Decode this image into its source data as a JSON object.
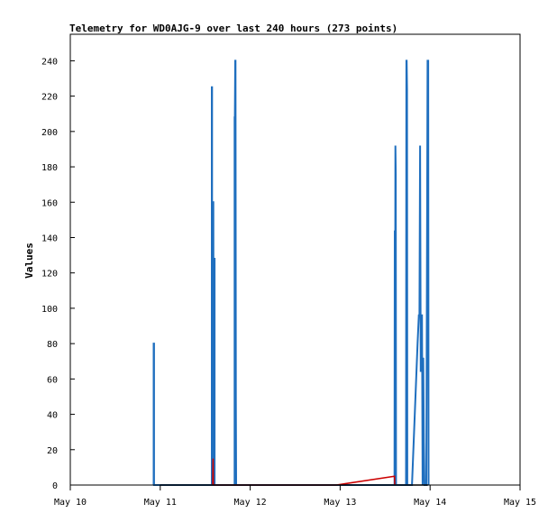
{
  "chart_data": {
    "type": "line",
    "title": "Telemetry for WD0AJG-9 over last 240 hours (273 points)",
    "ylabel": "Values",
    "xlabel": "",
    "x_axis_type": "date",
    "xlim": [
      "2025-05-10",
      "2025-05-15"
    ],
    "x_ticks": [
      {
        "value": "2025-05-10",
        "label": "May 10"
      },
      {
        "value": "2025-05-11",
        "label": "May 11"
      },
      {
        "value": "2025-05-12",
        "label": "May 12"
      },
      {
        "value": "2025-05-13",
        "label": "May 13"
      },
      {
        "value": "2025-05-14",
        "label": "May 14"
      },
      {
        "value": "2025-05-15",
        "label": "May 15"
      }
    ],
    "ylim": [
      0,
      255
    ],
    "y_ticks": [
      0,
      20,
      40,
      60,
      80,
      100,
      120,
      140,
      160,
      180,
      200,
      220,
      240
    ],
    "grid": false,
    "colors": {
      "series_blue": "#1f6fbf",
      "series_red": "#cc0000",
      "series_black": "#000000",
      "axis": "#000000"
    },
    "series": [
      {
        "color": "#1f6fbf",
        "points": [
          [
            "2025-05-10T22:15",
            0
          ],
          [
            "2025-05-10T22:15",
            80
          ],
          [
            "2025-05-10T22:20",
            80
          ],
          [
            "2025-05-10T22:20",
            0
          ],
          [
            "2025-05-11T13:45",
            0
          ],
          [
            "2025-05-11T13:45",
            225
          ],
          [
            "2025-05-11T13:50",
            225
          ],
          [
            "2025-05-11T13:50",
            0
          ],
          [
            "2025-05-11T14:00",
            32
          ],
          [
            "2025-05-11T14:05",
            160
          ],
          [
            "2025-05-11T14:10",
            160
          ],
          [
            "2025-05-11T14:15",
            0
          ],
          [
            "2025-05-11T14:25",
            0
          ],
          [
            "2025-05-11T14:25",
            128
          ],
          [
            "2025-05-11T14:30",
            128
          ],
          [
            "2025-05-11T14:30",
            0
          ],
          [
            "2025-05-11T19:50",
            0
          ],
          [
            "2025-05-11T19:50",
            208
          ],
          [
            "2025-05-11T19:55",
            208
          ],
          [
            "2025-05-11T20:00",
            240
          ],
          [
            "2025-05-11T20:05",
            240
          ],
          [
            "2025-05-11T20:10",
            48
          ],
          [
            "2025-05-11T20:15",
            0
          ],
          [
            "2025-05-13T14:30",
            0
          ],
          [
            "2025-05-13T14:35",
            144
          ],
          [
            "2025-05-13T14:40",
            80
          ],
          [
            "2025-05-13T14:45",
            192
          ],
          [
            "2025-05-13T14:50",
            176
          ],
          [
            "2025-05-13T14:55",
            0
          ],
          [
            "2025-05-13T17:35",
            0
          ],
          [
            "2025-05-13T17:40",
            240
          ],
          [
            "2025-05-13T17:45",
            240
          ],
          [
            "2025-05-13T17:50",
            224
          ],
          [
            "2025-05-13T17:55",
            0
          ],
          [
            "2025-05-13T19:10",
            0
          ],
          [
            "2025-05-13T20:40",
            80
          ],
          [
            "2025-05-13T21:00",
            96
          ],
          [
            "2025-05-13T21:10",
            96
          ],
          [
            "2025-05-13T21:20",
            192
          ],
          [
            "2025-05-13T21:30",
            64
          ],
          [
            "2025-05-13T21:40",
            96
          ],
          [
            "2025-05-13T21:50",
            96
          ],
          [
            "2025-05-13T22:00",
            0
          ],
          [
            "2025-05-13T22:10",
            72
          ],
          [
            "2025-05-13T22:20",
            24
          ],
          [
            "2025-05-13T22:30",
            0
          ],
          [
            "2025-05-13T23:00",
            0
          ],
          [
            "2025-05-13T23:10",
            120
          ],
          [
            "2025-05-13T23:20",
            240
          ],
          [
            "2025-05-13T23:30",
            240
          ],
          [
            "2025-05-13T23:35",
            0
          ]
        ]
      },
      {
        "color": "#cc0000",
        "points": [
          [
            "2025-05-11T14:00",
            0
          ],
          [
            "2025-05-11T14:05",
            15
          ],
          [
            "2025-05-11T14:10",
            0
          ],
          [
            "2025-05-12T23:00",
            0
          ],
          [
            "2025-05-13T14:30",
            5
          ],
          [
            "2025-05-13T14:35",
            0
          ]
        ]
      },
      {
        "color": "#000000",
        "points": [
          [
            "2025-05-11T00:00",
            0
          ],
          [
            "2025-05-13T14:30",
            0
          ],
          [
            "2025-05-13T18:00",
            0
          ],
          [
            "2025-05-13T23:30",
            0
          ]
        ]
      }
    ]
  }
}
